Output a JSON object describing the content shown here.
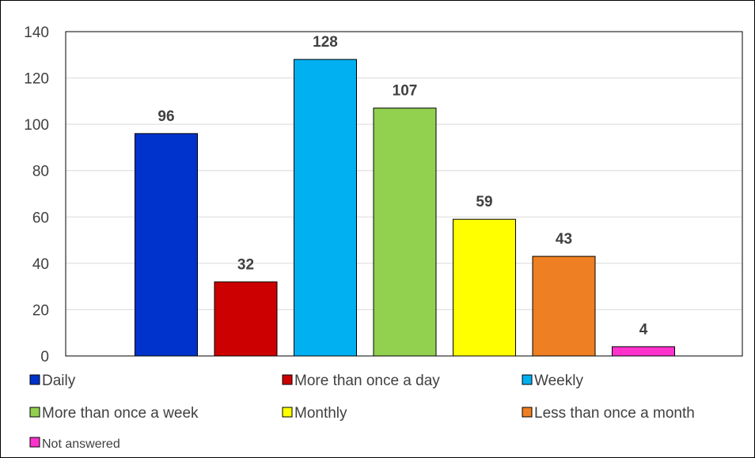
{
  "chart_data": {
    "type": "bar",
    "categories": [
      "Daily",
      "More than once a day",
      "Weekly",
      "More than once a week",
      "Monthly",
      "Less than once a month",
      "Not answered"
    ],
    "values": [
      96,
      32,
      128,
      107,
      59,
      43,
      4
    ],
    "colors": [
      "#0033cc",
      "#cc0000",
      "#00b0f0",
      "#92d050",
      "#ffff00",
      "#ee7f22",
      "#ff33cc"
    ],
    "ylim": [
      0,
      140
    ],
    "yticks": [
      "0",
      "20",
      "40",
      "60",
      "80",
      "100",
      "120",
      "140"
    ],
    "grid": true,
    "legend_position": "bottom"
  }
}
